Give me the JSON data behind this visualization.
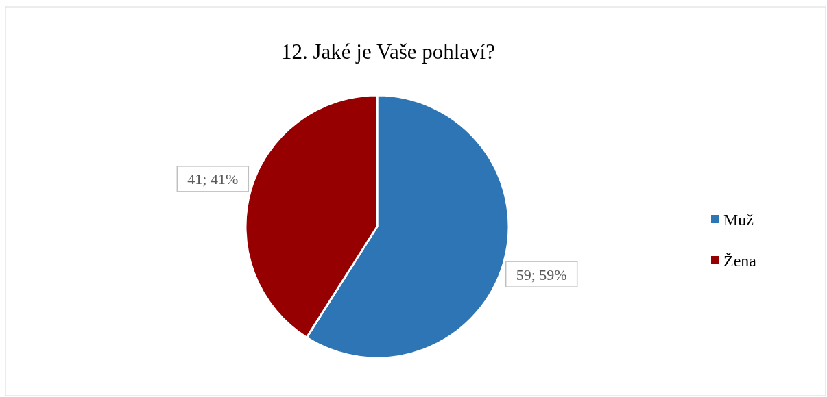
{
  "chart_data": {
    "type": "pie",
    "title": "12. Jaké je Vaše pohlaví?",
    "categories": [
      "Muž",
      "Žena"
    ],
    "values": [
      59,
      41
    ],
    "colors": [
      "#2e75b6",
      "#960000"
    ],
    "value_labels": [
      "59; 59%",
      "41; 41%"
    ],
    "legend": "right"
  }
}
